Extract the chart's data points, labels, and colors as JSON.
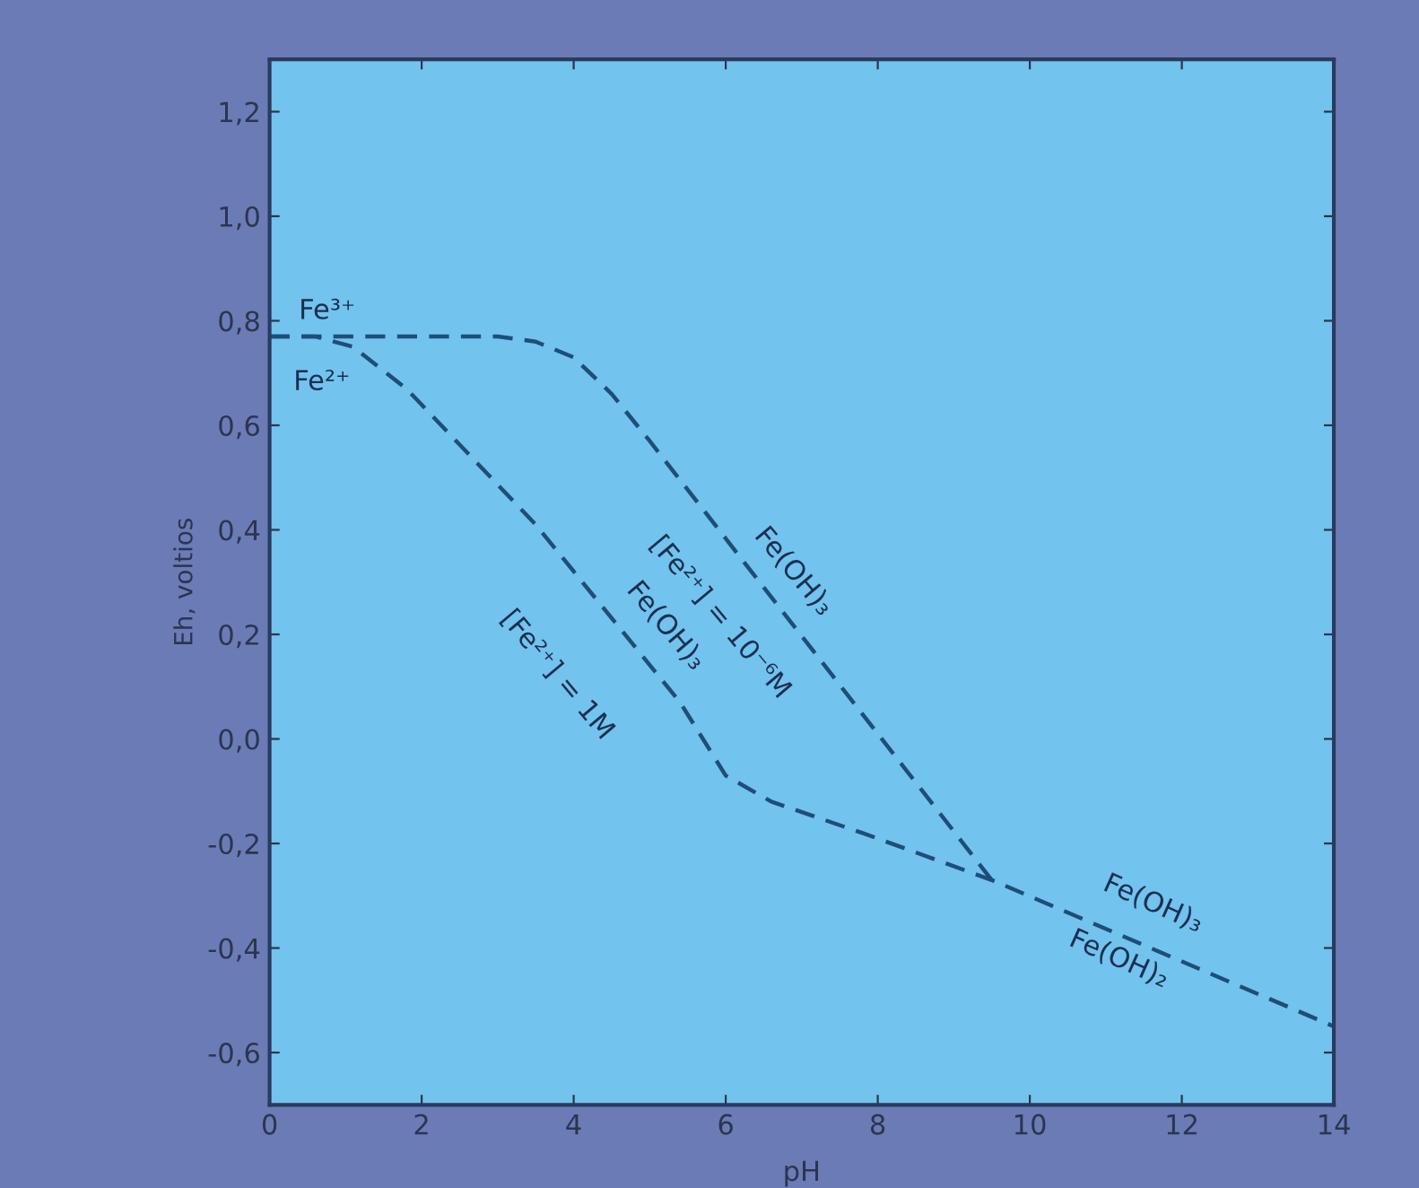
{
  "chart_data": {
    "type": "line",
    "xlabel": "pH",
    "ylabel": "Eh, voltios",
    "xlim": [
      0,
      14
    ],
    "xticks": [
      0,
      2,
      4,
      6,
      8,
      10,
      12,
      14
    ],
    "ylim": [
      -0.7,
      1.3
    ],
    "yticks": [
      {
        "value": -0.6,
        "label": "-0,6"
      },
      {
        "value": -0.4,
        "label": "-0,4"
      },
      {
        "value": -0.2,
        "label": "-0,2"
      },
      {
        "value": 0.0,
        "label": "0,0"
      },
      {
        "value": 0.2,
        "label": "0,2"
      },
      {
        "value": 0.4,
        "label": "0,4"
      },
      {
        "value": 0.6,
        "label": "0,6"
      },
      {
        "value": 0.8,
        "label": "0,8"
      },
      {
        "value": 1.0,
        "label": "1,0"
      },
      {
        "value": 1.2,
        "label": "1,2"
      }
    ],
    "series": [
      {
        "color": "#1e4e78",
        "x": [
          0,
          0.6,
          1.1,
          1.8,
          3.5,
          5.4,
          6.0,
          6.6,
          7.8,
          9.5,
          14
        ],
        "values": [
          0.77,
          0.77,
          0.75,
          0.67,
          0.41,
          0.07,
          -0.07,
          -0.12,
          -0.18,
          -0.27,
          -0.55
        ]
      },
      {
        "color": "#1e4e78",
        "x": [
          0,
          3.0,
          3.5,
          4.0,
          4.5,
          5.0,
          9.5
        ],
        "values": [
          0.77,
          0.77,
          0.76,
          0.73,
          0.66,
          0.57,
          -0.27
        ]
      }
    ],
    "line_style": "dashed",
    "marker": "none",
    "grid": false,
    "legend": false,
    "annotations": [
      "Fe³⁺",
      "Fe²⁺",
      "Fe(OH)₃",
      "[Fe²⁺] = 10⁻⁶M",
      "Fe(OH)₃",
      "[Fe²⁺] = 1M",
      "Fe(OH)₃",
      "Fe(OH)₂"
    ]
  }
}
